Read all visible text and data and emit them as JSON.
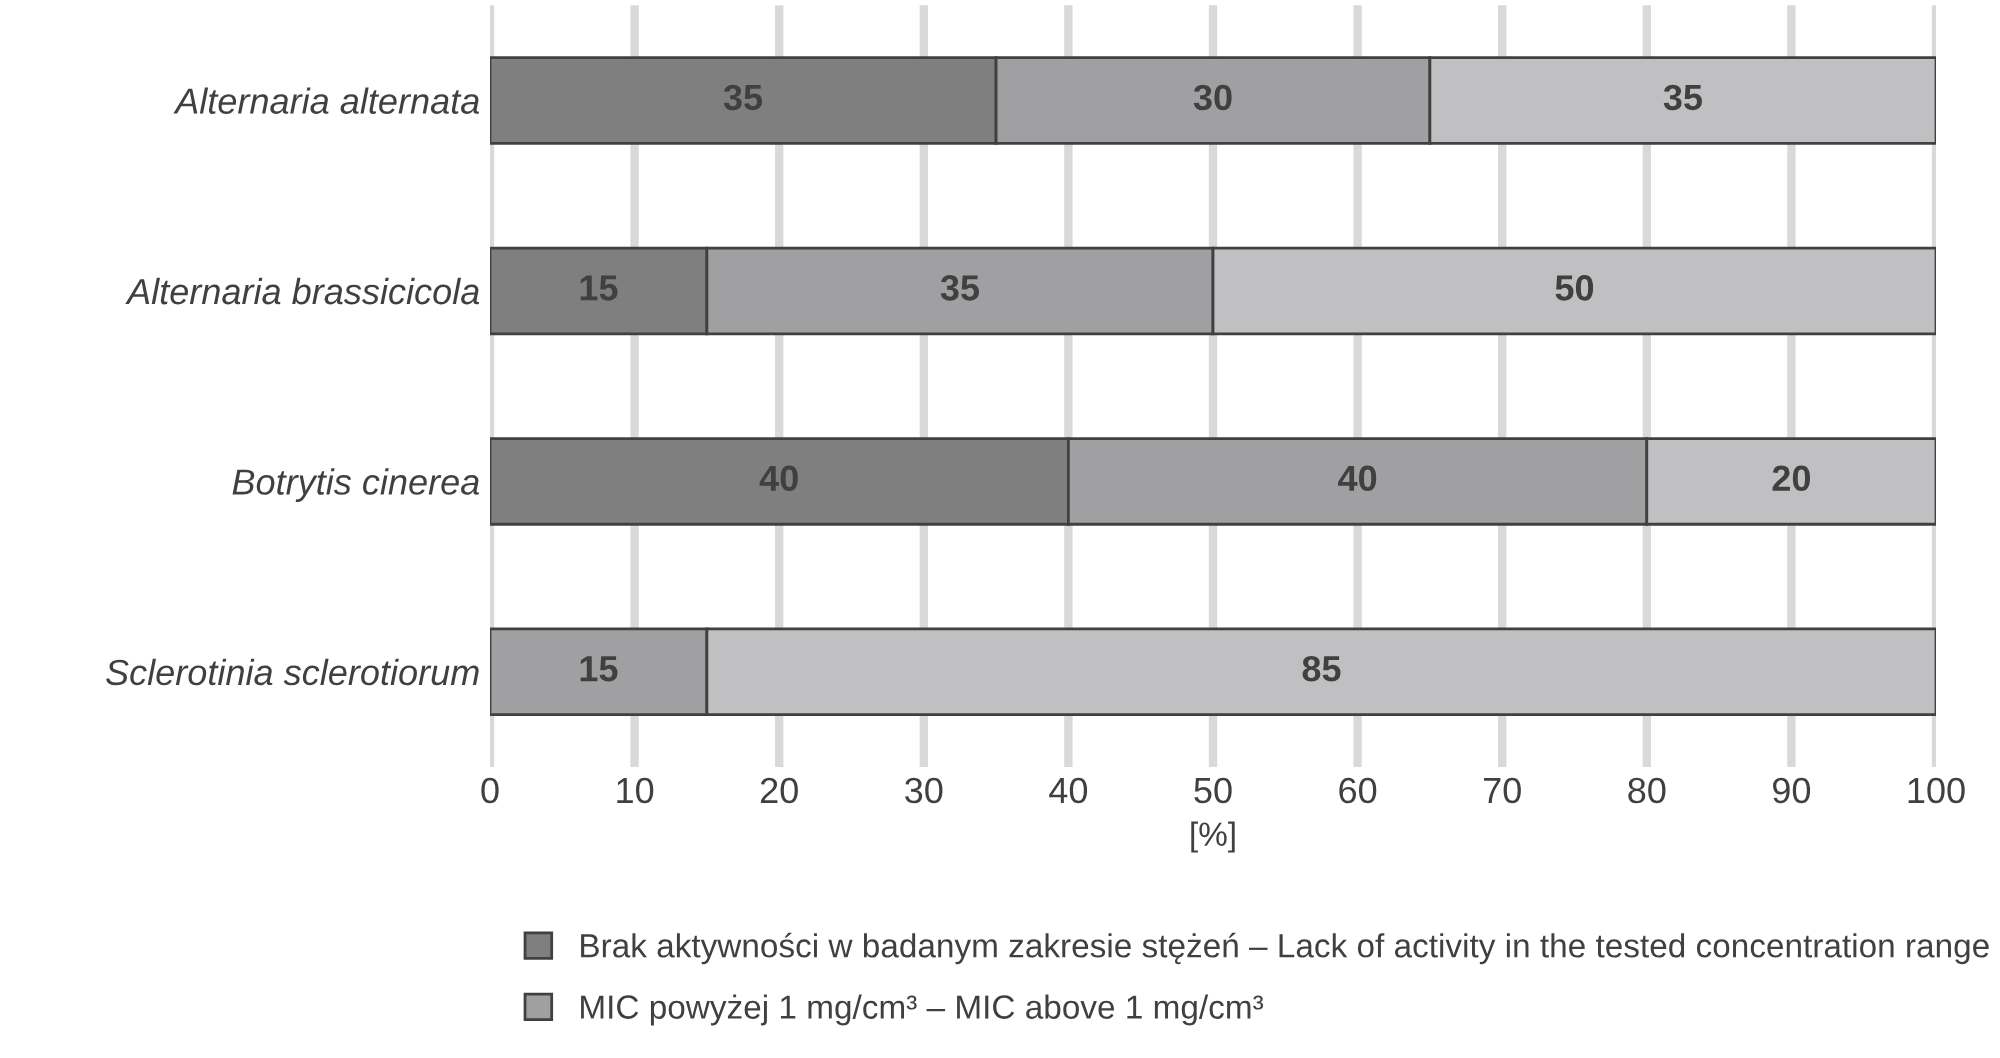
{
  "chart_data": {
    "type": "bar",
    "orientation": "horizontal",
    "stacked": true,
    "categories": [
      "Alternaria alternata",
      "Alternaria brassicicola",
      "Botrytis cinerea",
      "Sclerotinia sclerotiorum"
    ],
    "series": [
      {
        "name": "Brak aktywności w badanym zakresie stężeń – Lack of activity in the tested concentration range",
        "color": "#7f7f7f",
        "values": [
          35,
          15,
          40,
          null
        ]
      },
      {
        "name": "MIC powyżej 1 mg/cm³ – MIC above 1 mg/cm³",
        "color": "#a0a0a2",
        "values": [
          30,
          35,
          40,
          15
        ]
      },
      {
        "color": "#c0c0c2",
        "values": [
          35,
          50,
          20,
          85
        ]
      }
    ],
    "xlabel": "[%]",
    "xlim": [
      0,
      100
    ],
    "xticks": [
      0,
      10,
      20,
      30,
      40,
      50,
      60,
      70,
      80,
      90,
      100
    ],
    "grid": "x",
    "legend": "bottom",
    "data_labels": true
  }
}
